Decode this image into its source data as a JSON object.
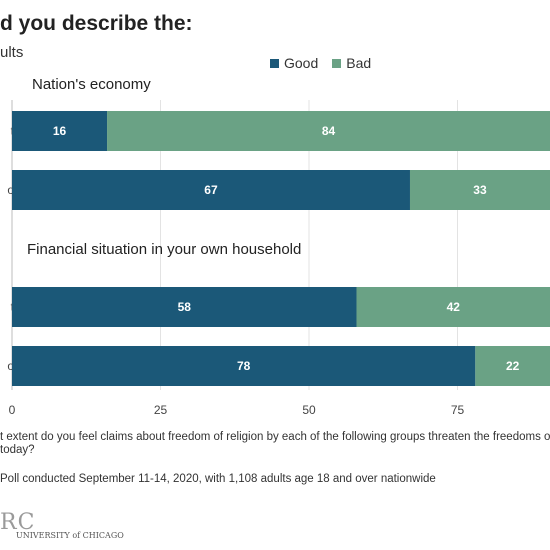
{
  "chart_data": {
    "type": "bar",
    "orientation": "horizontal",
    "stacked": true,
    "title": "d you describe the:",
    "subtitle": "ults",
    "legend": [
      "Good",
      "Bad"
    ],
    "legend_placement": "top",
    "groups": [
      {
        "title": "Nation's economy",
        "categories": [
          "t",
          "o"
        ],
        "series": [
          {
            "name": "Good",
            "values": [
              16,
              67
            ]
          },
          {
            "name": "Bad",
            "values": [
              84,
              33
            ]
          }
        ]
      },
      {
        "title": "Financial situation in your own household",
        "categories": [
          "t",
          "o"
        ],
        "series": [
          {
            "name": "Good",
            "values": [
              58,
              78
            ]
          },
          {
            "name": "Bad",
            "values": [
              42,
              22
            ]
          }
        ]
      }
    ],
    "xticks": [
      "0",
      "25",
      "50",
      "75"
    ],
    "xlim": [
      0,
      100
    ],
    "grid": true,
    "colors": {
      "Good": "#1b5878",
      "Bad": "#6aa285"
    }
  },
  "notes": {
    "question_line1": "t extent do you feel claims about freedom of religion by each of the following groups threaten the freedoms o",
    "question_line2": "today?",
    "source": "Poll conducted September 11-14, 2020, with 1,108 adults age 18 and over nationwide"
  },
  "logo": {
    "mark": "RC",
    "text": "UNIVERSITY of CHICAGO"
  }
}
